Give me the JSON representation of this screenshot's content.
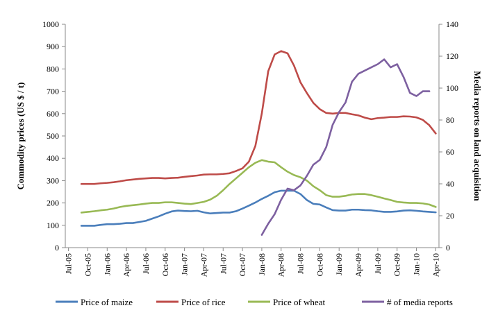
{
  "chart_data": {
    "type": "line",
    "categories": [
      "Jul-05",
      "Aug-05",
      "Sep-05",
      "Oct-05",
      "Nov-05",
      "Dec-05",
      "Jan-06",
      "Feb-06",
      "Mar-06",
      "Apr-06",
      "May-06",
      "Jun-06",
      "Jul-06",
      "Aug-06",
      "Sep-06",
      "Oct-06",
      "Nov-06",
      "Dec-06",
      "Jan-07",
      "Feb-07",
      "Mar-07",
      "Apr-07",
      "May-07",
      "Jun-07",
      "Jul-07",
      "Aug-07",
      "Sep-07",
      "Oct-07",
      "Nov-07",
      "Dec-07",
      "Jan-08",
      "Feb-08",
      "Mar-08",
      "Apr-08",
      "May-08",
      "Jun-08",
      "Jul-08",
      "Aug-08",
      "Sep-08",
      "Oct-08",
      "Nov-08",
      "Dec-08",
      "Jan-09",
      "Feb-09",
      "Mar-09",
      "Apr-09",
      "May-09",
      "Jun-09",
      "Jul-09",
      "Aug-09",
      "Sep-09",
      "Oct-09",
      "Nov-09",
      "Dec-09",
      "Jan-10",
      "Feb-10",
      "Mar-10",
      "Apr-10"
    ],
    "tick_labels": [
      "Jul-05",
      "Oct-05",
      "Jan-06",
      "Apr-06",
      "Jul-06",
      "Oct-06",
      "Jan-07",
      "Apr-07",
      "Jul-07",
      "Oct-07",
      "Jan-08",
      "Apr-08",
      "Jul-08",
      "Oct-08",
      "Jan-09",
      "Apr-09",
      "Jul-09",
      "Oct-09",
      "Jan-10",
      "Apr-10"
    ],
    "ylabel": "Commodity prices (US $ / t)",
    "y2label": "Media reports on land acquisition",
    "ylim": [
      0,
      1000
    ],
    "yticks": [
      0,
      100,
      200,
      300,
      400,
      500,
      600,
      700,
      800,
      900,
      1000
    ],
    "y2lim": [
      0,
      140
    ],
    "y2ticks": [
      0,
      20,
      40,
      60,
      80,
      100,
      120,
      140
    ],
    "grid": false,
    "legend_position": "bottom",
    "series": [
      {
        "name": "Price of maize",
        "axis": "left",
        "color": "#4a7ebb",
        "values": [
          null,
          null,
          98,
          98,
          98,
          102,
          105,
          105,
          107,
          110,
          110,
          115,
          120,
          130,
          140,
          152,
          162,
          166,
          164,
          163,
          165,
          158,
          153,
          155,
          157,
          157,
          163,
          175,
          188,
          202,
          218,
          232,
          248,
          255,
          255,
          255,
          240,
          213,
          196,
          193,
          180,
          168,
          166,
          166,
          170,
          170,
          168,
          167,
          163,
          160,
          160,
          162,
          166,
          167,
          165,
          162,
          160,
          158
        ]
      },
      {
        "name": "Price of rice",
        "axis": "left",
        "color": "#be4b48",
        "values": [
          null,
          null,
          285,
          285,
          285,
          288,
          290,
          293,
          297,
          302,
          305,
          308,
          310,
          312,
          312,
          310,
          312,
          313,
          317,
          320,
          323,
          327,
          328,
          328,
          330,
          333,
          343,
          355,
          385,
          455,
          600,
          790,
          865,
          880,
          870,
          815,
          740,
          692,
          648,
          620,
          603,
          600,
          603,
          603,
          597,
          592,
          582,
          575,
          580,
          582,
          585,
          585,
          588,
          587,
          583,
          572,
          548,
          511
        ]
      },
      {
        "name": "Price of wheat",
        "axis": "left",
        "color": "#98b954",
        "values": [
          null,
          null,
          157,
          160,
          163,
          167,
          170,
          175,
          182,
          187,
          190,
          193,
          197,
          200,
          200,
          203,
          203,
          200,
          197,
          195,
          200,
          205,
          215,
          232,
          257,
          285,
          310,
          335,
          360,
          380,
          392,
          385,
          382,
          360,
          340,
          325,
          315,
          300,
          275,
          257,
          235,
          228,
          228,
          232,
          238,
          240,
          240,
          235,
          228,
          220,
          213,
          205,
          202,
          200,
          200,
          198,
          193,
          182
        ]
      },
      {
        "name": "# of media reports",
        "axis": "right",
        "color": "#7d60a0",
        "values": [
          null,
          null,
          null,
          null,
          null,
          null,
          null,
          null,
          null,
          null,
          null,
          null,
          null,
          null,
          null,
          null,
          null,
          null,
          null,
          null,
          null,
          null,
          null,
          null,
          null,
          null,
          null,
          null,
          null,
          null,
          8,
          15,
          21,
          30,
          37,
          36,
          39,
          45,
          52,
          55,
          63,
          77,
          85,
          91,
          104,
          109,
          111,
          113,
          115,
          118,
          113,
          115,
          107,
          97,
          95,
          98,
          98,
          null
        ]
      }
    ]
  }
}
